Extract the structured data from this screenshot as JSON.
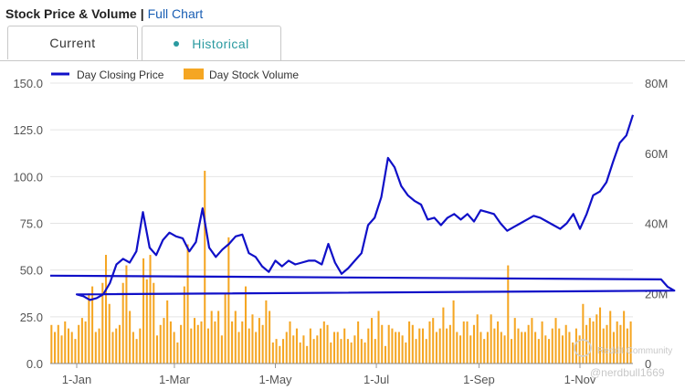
{
  "header": {
    "title": "Stock Price & Volume",
    "separator": "|",
    "link": "Full Chart"
  },
  "tabs": [
    {
      "label": "Current"
    },
    {
      "label": "Historical"
    }
  ],
  "colors": {
    "price": "#1010c8",
    "volume": "#f5a623",
    "accent": "#2a9aa0"
  },
  "watermark": {
    "line1": "Reddit Community",
    "line2": "@nerdbull1669"
  },
  "chart_data": {
    "type": "line+bar",
    "legend": [
      "Day Closing Price",
      "Day Stock Volume"
    ],
    "legend_position": "top-left",
    "x_ticks": [
      "1-Jan",
      "1-Mar",
      "1-May",
      "1-Jul",
      "1-Sep",
      "1-Nov"
    ],
    "y_left": {
      "ticks": [
        "0.0",
        "25.0",
        "50.0",
        "75.0",
        "100.0",
        "125.0",
        "150.0"
      ],
      "range": [
        0,
        150
      ]
    },
    "y_right": {
      "ticks": [
        "0",
        "20M",
        "40M",
        "60M",
        "80M"
      ],
      "range": [
        0,
        80
      ]
    },
    "grid": "horizontal",
    "price_series": {
      "name": "Day Closing Price",
      "dates": [
        "Dec-16",
        "Dec-20",
        "Dec-24",
        "Dec-28",
        "Jan-01",
        "Jan-05",
        "Jan-09",
        "Jan-13",
        "Jan-17",
        "Jan-21",
        "Jan-25",
        "Jan-29",
        "Feb-02",
        "Feb-06",
        "Feb-10",
        "Feb-14",
        "Feb-18",
        "Feb-22",
        "Feb-26",
        "Mar-02",
        "Mar-06",
        "Mar-10",
        "Mar-14",
        "Mar-18",
        "Mar-22",
        "Mar-26",
        "Mar-30",
        "Apr-03",
        "Apr-07",
        "Apr-11",
        "Apr-15",
        "Apr-19",
        "Apr-23",
        "Apr-27",
        "May-01",
        "May-05",
        "May-09",
        "May-13",
        "May-17",
        "May-21",
        "May-25",
        "May-29",
        "Jun-02",
        "Jun-06",
        "Jun-10",
        "Jun-14",
        "Jun-18",
        "Jun-22",
        "Jun-26",
        "Jun-30",
        "Jul-04",
        "Jul-08",
        "Jul-12",
        "Jul-16",
        "Jul-20",
        "Jul-24",
        "Jul-28",
        "Aug-01",
        "Aug-05",
        "Aug-09",
        "Aug-13",
        "Aug-17",
        "Aug-21",
        "Aug-25",
        "Aug-29",
        "Sep-02",
        "Sep-06",
        "Sep-10",
        "Sep-14",
        "Sep-18",
        "Sep-22",
        "Sep-26",
        "Sep-30",
        "Oct-04",
        "Oct-08",
        "Oct-12",
        "Oct-16",
        "Oct-20",
        "Oct-24",
        "Oct-28",
        "Nov-01",
        "Nov-05",
        "Nov-09",
        "Nov-13",
        "Nov-17",
        "Nov-21",
        "Nov-25",
        "Nov-29",
        "Dec-03"
      ],
      "values": [
        47,
        45,
        41,
        39,
        37,
        36,
        34,
        35,
        37,
        43,
        53,
        56,
        54,
        60,
        81,
        62,
        58,
        66,
        70,
        68,
        67,
        60,
        65,
        83,
        62,
        57,
        61,
        64,
        68,
        69,
        59,
        57,
        52,
        49,
        55,
        52,
        55,
        53,
        54,
        55,
        55,
        53,
        64,
        54,
        48,
        51,
        55,
        59,
        74,
        78,
        89,
        110,
        105,
        95,
        90,
        87,
        85,
        77,
        78,
        74,
        78,
        80,
        77,
        80,
        76,
        82,
        81,
        80,
        75,
        71,
        73,
        75,
        77,
        79,
        78,
        76,
        74,
        72,
        75,
        80,
        72,
        80,
        90,
        92,
        97,
        108,
        118,
        122,
        133
      ]
    },
    "volume_series": {
      "name": "Day Stock Volume",
      "values": [
        11,
        9,
        11,
        8,
        12,
        10,
        9,
        7,
        11,
        13,
        12,
        20,
        22,
        9,
        10,
        23,
        31,
        17,
        9,
        10,
        11,
        23,
        28,
        15,
        9,
        7,
        10,
        30,
        24,
        31,
        23,
        8,
        11,
        13,
        18,
        12,
        9,
        6,
        11,
        22,
        34,
        10,
        13,
        11,
        12,
        55,
        10,
        15,
        12,
        15,
        8,
        20,
        36,
        12,
        15,
        9,
        12,
        22,
        10,
        14,
        9,
        13,
        11,
        18,
        15,
        6,
        7,
        5,
        7,
        9,
        12,
        8,
        10,
        6,
        8,
        5,
        10,
        7,
        8,
        10,
        12,
        11,
        6,
        9,
        9,
        7,
        10,
        7,
        6,
        8,
        12,
        7,
        6,
        10,
        13,
        7,
        15,
        11,
        5,
        11,
        10,
        9,
        9,
        8,
        6,
        12,
        11,
        7,
        10,
        10,
        7,
        12,
        13,
        9,
        10,
        16,
        10,
        11,
        18,
        9,
        8,
        12,
        12,
        8,
        11,
        14,
        9,
        7,
        9,
        14,
        10,
        12,
        9,
        8,
        28,
        7,
        13,
        10,
        9,
        9,
        11,
        13,
        9,
        7,
        12,
        8,
        7,
        10,
        13,
        10,
        8,
        11,
        9,
        6,
        10,
        8,
        17,
        11,
        13,
        12,
        14,
        16,
        10,
        11,
        15,
        9,
        12,
        11,
        15,
        10,
        12
      ]
    }
  }
}
